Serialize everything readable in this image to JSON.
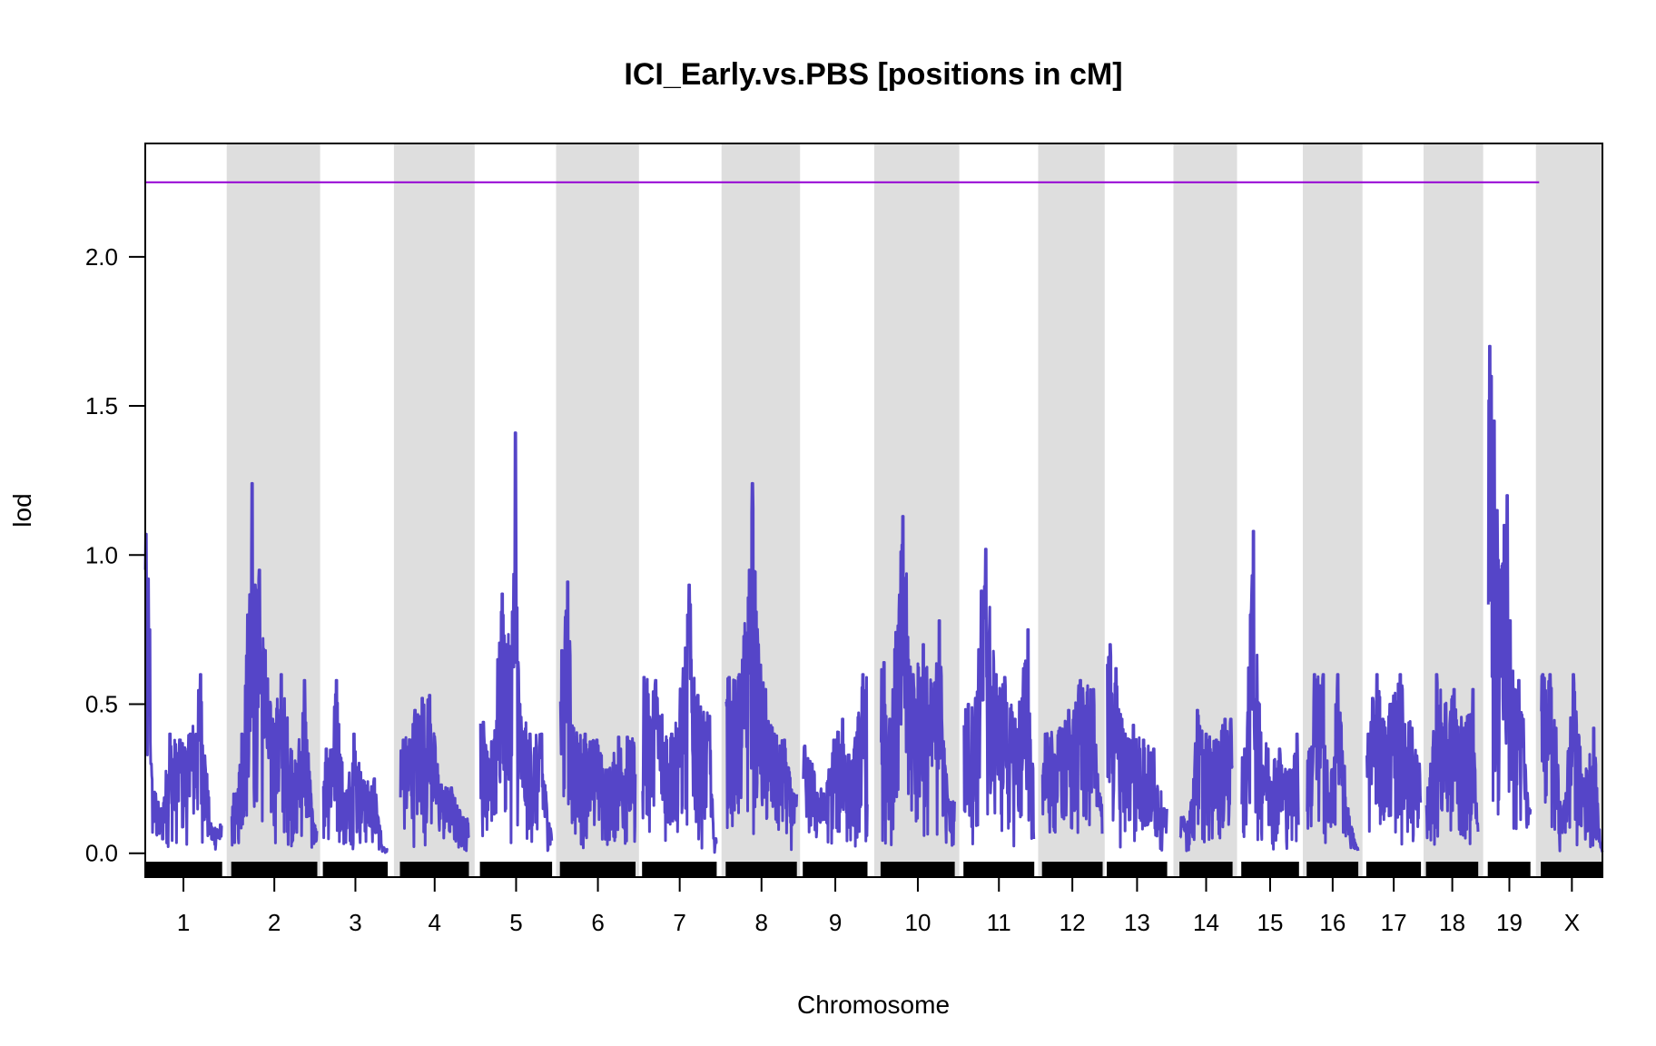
{
  "chart_data": {
    "type": "line",
    "title": "ICI_Early.vs.PBS [positions in cM]",
    "xlabel": "Chromosome",
    "ylabel": "lod",
    "ylim": [
      -0.08,
      2.38
    ],
    "yticks": [
      0.0,
      0.5,
      1.0,
      1.5,
      2.0
    ],
    "ytick_labels": [
      "0.0",
      "0.5",
      "1.0",
      "1.5",
      "2.0"
    ],
    "threshold": {
      "value": 2.25,
      "color": "#9400d3"
    },
    "colors": {
      "series": "#5545c8",
      "band": "#dedede",
      "threshold": "#9400d3",
      "marker": "#000000"
    },
    "chromosomes": [
      {
        "name": "1",
        "start": 0,
        "length": 105,
        "peaks": [
          [
            0,
            0.95
          ],
          [
            1,
            1.07
          ],
          [
            4,
            0.92
          ],
          [
            6,
            0.75
          ],
          [
            8,
            0.3
          ],
          [
            14,
            0.2
          ],
          [
            22,
            0.15
          ],
          [
            34,
            0.4
          ],
          [
            48,
            0.38
          ],
          [
            62,
            0.4
          ],
          [
            76,
            0.6
          ],
          [
            90,
            0.1
          ]
        ]
      },
      {
        "name": "2",
        "start": 119,
        "length": 117,
        "peaks": [
          [
            6,
            0.2
          ],
          [
            14,
            0.4
          ],
          [
            22,
            0.8
          ],
          [
            28,
            1.24
          ],
          [
            32,
            0.9
          ],
          [
            38,
            0.95
          ],
          [
            46,
            0.68
          ],
          [
            56,
            0.45
          ],
          [
            68,
            0.6
          ],
          [
            88,
            0.3
          ],
          [
            100,
            0.58
          ],
          [
            112,
            0.1
          ]
        ]
      },
      {
        "name": "3",
        "start": 245,
        "length": 88,
        "peaks": [
          [
            4,
            0.35
          ],
          [
            18,
            0.58
          ],
          [
            30,
            0.2
          ],
          [
            42,
            0.4
          ],
          [
            56,
            0.24
          ],
          [
            70,
            0.25
          ],
          [
            82,
            0.02
          ]
        ]
      },
      {
        "name": "4",
        "start": 351,
        "length": 94,
        "peaks": [
          [
            4,
            0.38
          ],
          [
            20,
            0.48
          ],
          [
            30,
            0.52
          ],
          [
            40,
            0.53
          ],
          [
            56,
            0.23
          ],
          [
            70,
            0.22
          ],
          [
            86,
            0.12
          ]
        ]
      },
      {
        "name": "5",
        "start": 461,
        "length": 98,
        "peaks": [
          [
            4,
            0.44
          ],
          [
            12,
            0.3
          ],
          [
            24,
            0.65
          ],
          [
            30,
            0.87
          ],
          [
            36,
            0.7
          ],
          [
            44,
            0.81
          ],
          [
            48,
            1.41
          ],
          [
            54,
            0.5
          ],
          [
            68,
            0.4
          ],
          [
            84,
            0.4
          ],
          [
            94,
            0.1
          ]
        ]
      },
      {
        "name": "6",
        "start": 571,
        "length": 103,
        "peaks": [
          [
            2,
            0.68
          ],
          [
            10,
            0.91
          ],
          [
            18,
            0.42
          ],
          [
            34,
            0.4
          ],
          [
            50,
            0.38
          ],
          [
            66,
            0.28
          ],
          [
            80,
            0.39
          ],
          [
            92,
            0.39
          ]
        ]
      },
      {
        "name": "7",
        "start": 684,
        "length": 102,
        "peaks": [
          [
            2,
            0.59
          ],
          [
            18,
            0.58
          ],
          [
            40,
            0.4
          ],
          [
            56,
            0.62
          ],
          [
            64,
            0.9
          ],
          [
            76,
            0.53
          ],
          [
            92,
            0.46
          ],
          [
            98,
            0.05
          ]
        ]
      },
      {
        "name": "8",
        "start": 799,
        "length": 97,
        "peaks": [
          [
            4,
            0.59
          ],
          [
            18,
            0.6
          ],
          [
            32,
            0.95
          ],
          [
            36,
            1.24
          ],
          [
            44,
            0.7
          ],
          [
            54,
            0.55
          ],
          [
            66,
            0.4
          ],
          [
            80,
            0.38
          ],
          [
            92,
            0.2
          ]
        ]
      },
      {
        "name": "9",
        "start": 905,
        "length": 88,
        "peaks": [
          [
            2,
            0.36
          ],
          [
            12,
            0.3
          ],
          [
            28,
            0.2
          ],
          [
            42,
            0.38
          ],
          [
            54,
            0.45
          ],
          [
            66,
            0.3
          ],
          [
            82,
            0.6
          ]
        ]
      },
      {
        "name": "10",
        "start": 1012,
        "length": 101,
        "peaks": [
          [
            4,
            0.64
          ],
          [
            12,
            0.45
          ],
          [
            30,
            1.13
          ],
          [
            44,
            0.6
          ],
          [
            58,
            0.7
          ],
          [
            72,
            0.55
          ],
          [
            80,
            0.78
          ],
          [
            92,
            0.18
          ]
        ]
      },
      {
        "name": "11",
        "start": 1126,
        "length": 96,
        "peaks": [
          [
            6,
            0.5
          ],
          [
            16,
            0.52
          ],
          [
            24,
            0.88
          ],
          [
            30,
            1.02
          ],
          [
            44,
            0.6
          ],
          [
            56,
            0.59
          ],
          [
            70,
            0.45
          ],
          [
            82,
            0.62
          ],
          [
            88,
            0.75
          ],
          [
            94,
            0.3
          ]
        ]
      },
      {
        "name": "12",
        "start": 1234,
        "length": 82,
        "peaks": [
          [
            4,
            0.4
          ],
          [
            24,
            0.42
          ],
          [
            36,
            0.48
          ],
          [
            52,
            0.58
          ],
          [
            70,
            0.55
          ],
          [
            78,
            0.2
          ]
        ]
      },
      {
        "name": "13",
        "start": 1323,
        "length": 82,
        "peaks": [
          [
            4,
            0.7
          ],
          [
            12,
            0.62
          ],
          [
            20,
            0.45
          ],
          [
            36,
            0.43
          ],
          [
            50,
            0.38
          ],
          [
            64,
            0.35
          ],
          [
            78,
            0.15
          ]
        ]
      },
      {
        "name": "14",
        "start": 1423,
        "length": 72,
        "peaks": [
          [
            2,
            0.12
          ],
          [
            14,
            0.14
          ],
          [
            24,
            0.48
          ],
          [
            36,
            0.4
          ],
          [
            50,
            0.38
          ],
          [
            62,
            0.45
          ],
          [
            70,
            0.45
          ]
        ]
      },
      {
        "name": "15",
        "start": 1508,
        "length": 78,
        "peaks": [
          [
            4,
            0.35
          ],
          [
            12,
            0.8
          ],
          [
            16,
            1.08
          ],
          [
            24,
            0.5
          ],
          [
            36,
            0.35
          ],
          [
            52,
            0.35
          ],
          [
            66,
            0.28
          ],
          [
            76,
            0.4
          ]
        ]
      },
      {
        "name": "16",
        "start": 1598,
        "length": 70,
        "peaks": [
          [
            4,
            0.35
          ],
          [
            10,
            0.6
          ],
          [
            22,
            0.6
          ],
          [
            30,
            0.2
          ],
          [
            42,
            0.6
          ],
          [
            56,
            0.15
          ],
          [
            68,
            0.02
          ]
        ]
      },
      {
        "name": "17",
        "start": 1680,
        "length": 74,
        "peaks": [
          [
            2,
            0.4
          ],
          [
            8,
            0.52
          ],
          [
            14,
            0.6
          ],
          [
            22,
            0.45
          ],
          [
            32,
            0.5
          ],
          [
            46,
            0.6
          ],
          [
            62,
            0.42
          ],
          [
            72,
            0.3
          ]
        ]
      },
      {
        "name": "18",
        "start": 1762,
        "length": 71,
        "peaks": [
          [
            2,
            0.22
          ],
          [
            14,
            0.6
          ],
          [
            26,
            0.5
          ],
          [
            38,
            0.55
          ],
          [
            52,
            0.42
          ],
          [
            64,
            0.55
          ],
          [
            70,
            0.1
          ]
        ]
      },
      {
        "name": "19",
        "start": 1847,
        "length": 58,
        "peaks": [
          [
            2,
            1.7
          ],
          [
            4,
            1.6
          ],
          [
            8,
            1.45
          ],
          [
            12,
            1.15
          ],
          [
            16,
            0.95
          ],
          [
            22,
            1.1
          ],
          [
            26,
            1.2
          ],
          [
            30,
            0.78
          ],
          [
            36,
            0.55
          ],
          [
            42,
            0.58
          ],
          [
            48,
            0.45
          ],
          [
            56,
            0.15
          ]
        ]
      },
      {
        "name": "X",
        "start": 1920,
        "length": 84,
        "peaks": [
          [
            2,
            0.6
          ],
          [
            12,
            0.6
          ],
          [
            20,
            0.42
          ],
          [
            28,
            0.1
          ],
          [
            44,
            0.6
          ],
          [
            58,
            0.25
          ],
          [
            72,
            0.42
          ],
          [
            82,
            0.02
          ]
        ]
      }
    ]
  }
}
